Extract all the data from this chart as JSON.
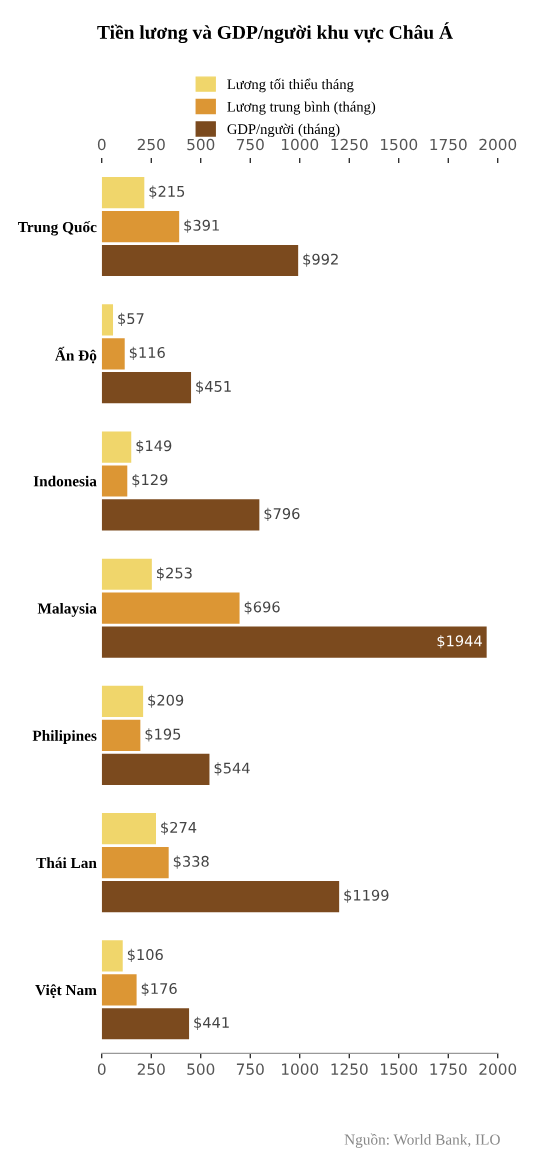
{
  "chart_data": {
    "type": "bar",
    "orientation": "horizontal",
    "title": "Tiền lương và GDP/người khu vực Châu Á",
    "categories": [
      "Trung Quốc",
      "Ấn Độ",
      "Indonesia",
      "Malaysia",
      "Philipines",
      "Thái Lan",
      "Việt Nam"
    ],
    "series": [
      {
        "name": "Lương tối thiểu tháng",
        "color": "#f0d66b",
        "values": [
          215,
          57,
          149,
          253,
          209,
          274,
          106
        ],
        "value_labels": [
          "$215",
          "$57",
          "$149",
          "$253",
          "$209",
          "$274",
          "$106"
        ]
      },
      {
        "name": "Lương trung bình (tháng)",
        "color": "#dc9634",
        "values": [
          391,
          116,
          129,
          696,
          195,
          338,
          176
        ],
        "value_labels": [
          "$391",
          "$116",
          "$129",
          "$696",
          "$195",
          "$338",
          "$176"
        ]
      },
      {
        "name": "GDP/người (tháng)",
        "color": "#7b4a1e",
        "values": [
          992,
          451,
          796,
          1944,
          544,
          1199,
          441
        ],
        "value_labels": [
          "$992",
          "$451",
          "$796",
          "$1944",
          "$544",
          "$1199",
          "$441"
        ]
      }
    ],
    "xlim": [
      0,
      2000
    ],
    "xticks": [
      0,
      250,
      500,
      750,
      1000,
      1250,
      1500,
      1750,
      2000
    ],
    "x2lim": [
      0,
      2000
    ],
    "x2ticks": [
      0,
      250,
      500,
      750,
      1000,
      1250,
      1500,
      1750,
      2000
    ],
    "legend": "top",
    "annotations": [
      "Nguồn: World Bank, ILO"
    ]
  }
}
